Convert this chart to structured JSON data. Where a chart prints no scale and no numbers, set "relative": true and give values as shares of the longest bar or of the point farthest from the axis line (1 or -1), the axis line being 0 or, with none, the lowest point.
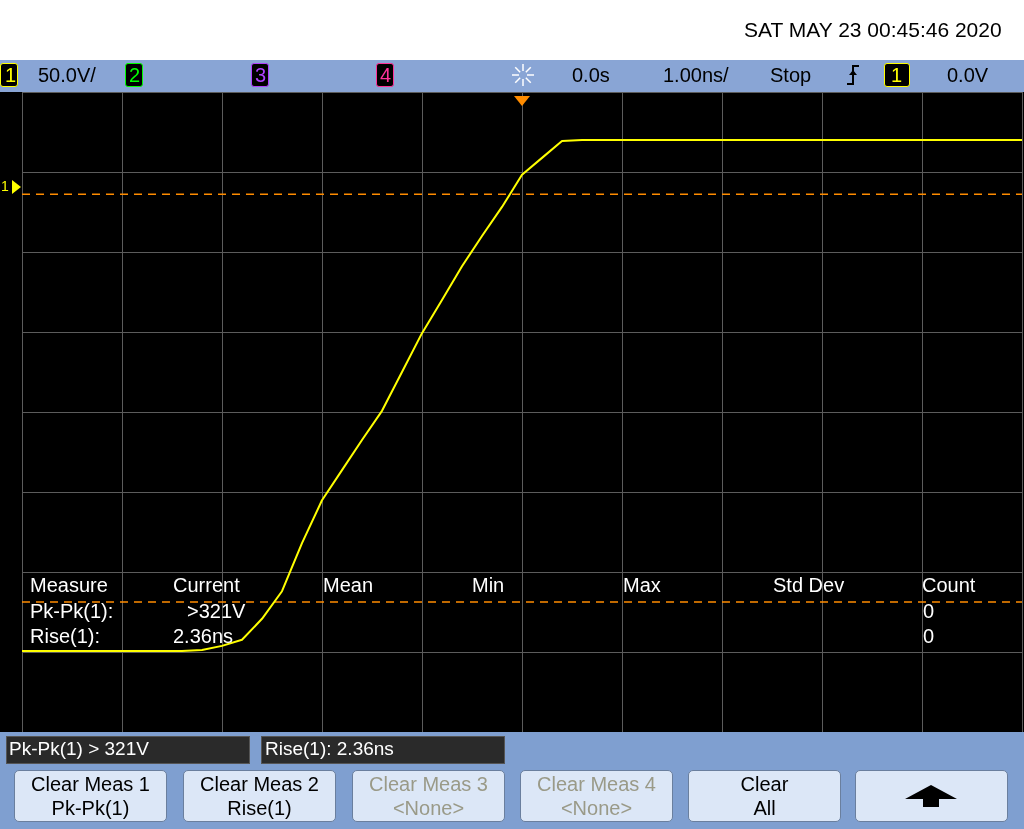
{
  "chart_data": {
    "type": "line",
    "relative": true,
    "grid": true,
    "legend": false,
    "marker": "none",
    "categories": [
      null,
      null,
      null,
      null,
      null,
      null,
      null,
      null,
      null,
      null,
      null,
      null,
      null,
      null,
      null,
      null,
      null,
      null,
      null,
      null,
      null,
      null,
      null,
      null,
      null,
      null,
      null,
      null,
      null,
      null,
      null,
      null,
      null,
      null,
      null,
      null,
      null,
      null,
      null,
      null,
      null,
      null,
      null,
      null,
      null,
      null,
      null,
      null,
      null,
      null,
      null
    ],
    "series": [
      {
        "color": "#ffff00",
        "values": [
          0,
          0,
          0,
          0,
          0,
          0,
          0,
          0,
          0,
          0.002,
          0.01,
          0.022,
          0.063,
          0.117,
          0.211,
          0.295,
          0.354,
          0.413,
          0.47,
          0.546,
          0.622,
          0.687,
          0.753,
          0.812,
          0.869,
          0.932,
          0.965,
          0.998,
          1,
          1,
          1,
          1,
          1,
          1,
          1,
          1,
          1,
          1,
          1,
          1,
          1,
          1,
          1,
          1,
          1,
          1,
          1,
          1,
          1,
          1,
          1
        ]
      }
    ],
    "ref_lines": [
      {
        "axis": "y",
        "value": 0.096,
        "color": "#ff8c00",
        "line_style": "dashed"
      },
      {
        "axis": "y",
        "value": 0.894,
        "color": "#ff8c00",
        "line_style": "dashed"
      }
    ],
    "annotations": [
      "SAT MAY 23 00:45:46 2020",
      "1",
      "50.0V/",
      "2",
      "3",
      "4",
      "0.0s",
      "1.00ns/",
      "Stop",
      "1",
      "0.0V",
      "Measure",
      "Current",
      "Mean",
      "Min",
      "Max",
      "Std Dev",
      "Count",
      "Pk-Pk(1):",
      ">321V",
      "0",
      "Rise(1):",
      "2.36ns",
      "0",
      "Pk-Pk(1) > 321V",
      "Rise(1): 2.36ns",
      "Clear Meas 1",
      "Pk-Pk(1)",
      "Clear Meas 2",
      "Rise(1)",
      "Clear Meas 3",
      "<None>",
      "Clear Meas 4",
      "<None>",
      "Clear",
      "All",
      "1"
    ]
  }
}
